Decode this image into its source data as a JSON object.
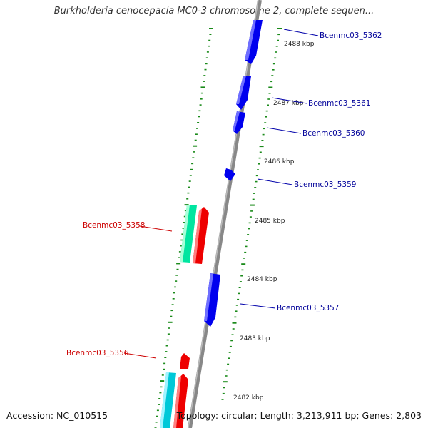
{
  "title": "Burkholderia cenocepacia MC0-3 chromosome 2, complete sequen...",
  "footer": {
    "accession": "Accession: NC_010515",
    "summary": "Topology: circular; Length: 3,213,911 bp; Genes: 2,803"
  },
  "colors": {
    "forward_gene": "#0000ee",
    "reverse_gene": "#ee0000",
    "reverse_highlight": "#00e5a0",
    "reverse_highlight_2": "#00c8d8",
    "backbone": "#888888",
    "tick": "#1a8a1a",
    "forward_label": "#000099",
    "reverse_label": "#cc0000"
  },
  "kbp_labels": [
    "2488 kbp",
    "2487 kbp",
    "2486 kbp",
    "2485 kbp",
    "2484 kbp",
    "2483 kbp",
    "2482 kbp"
  ],
  "genes_forward": [
    {
      "label": "Bcenmc03_5362"
    },
    {
      "label": "Bcenmc03_5361"
    },
    {
      "label": "Bcenmc03_5360"
    },
    {
      "label": "Bcenmc03_5359"
    },
    {
      "label": "Bcenmc03_5357"
    }
  ],
  "genes_reverse": [
    {
      "label": "Bcenmc03_5358"
    },
    {
      "label": "Bcenmc03_5356"
    }
  ]
}
